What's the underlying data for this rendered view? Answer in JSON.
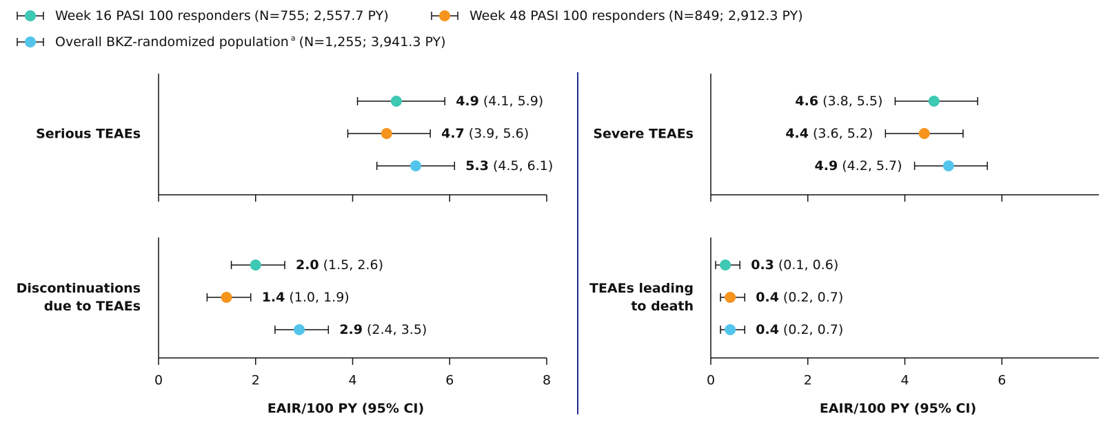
{
  "legend": [
    {
      "name": "Week 16 PASI 100 responders",
      "detail": "(N=755; 2,557.7 PY)",
      "color": "#3ec9b4"
    },
    {
      "name": "Week 48 PASI 100 responders",
      "detail": "(N=849; 2,912.3 PY)",
      "color": "#f7941d"
    },
    {
      "name": "Overall BKZ-randomized population",
      "footnote": "a",
      "detail": "(N=1,255; 3,941.3 PY)",
      "color": "#53c5ec"
    }
  ],
  "chart_data": [
    {
      "type": "forest",
      "label_lines": [
        "Serious TEAEs"
      ],
      "values": [
        4.9,
        4.7,
        5.3
      ],
      "lower": [
        4.1,
        3.9,
        4.5
      ],
      "upper": [
        5.9,
        5.6,
        6.1
      ],
      "ci_labels": [
        "(4.1, 5.9)",
        "(3.9, 5.6)",
        "(4.5, 6.1)"
      ],
      "xlim": [
        0,
        8
      ],
      "xticks": [
        0,
        2,
        4,
        6,
        8
      ]
    },
    {
      "type": "forest",
      "label_lines": [
        "Severe TEAEs"
      ],
      "values": [
        4.6,
        4.4,
        4.9
      ],
      "lower": [
        3.8,
        3.6,
        4.2
      ],
      "upper": [
        5.5,
        5.2,
        5.7
      ],
      "ci_labels": [
        "(3.8, 5.5)",
        "(3.6, 5.2)",
        "(4.2, 5.7)"
      ],
      "xlim": [
        0,
        8
      ],
      "xticks": [
        0,
        2,
        4,
        6
      ]
    },
    {
      "type": "forest",
      "label_lines": [
        "Discontinuations",
        "due to TEAEs"
      ],
      "values": [
        2.0,
        1.4,
        2.9
      ],
      "value_labels": [
        "2.0",
        "1.4",
        "2.9"
      ],
      "lower": [
        1.5,
        1.0,
        2.4
      ],
      "upper": [
        2.6,
        1.9,
        3.5
      ],
      "ci_labels": [
        "(1.5, 2.6)",
        "(1.0, 1.9)",
        "(2.4, 3.5)"
      ],
      "xlim": [
        0,
        8
      ],
      "xticks": [
        0,
        2,
        4,
        6,
        8
      ],
      "x_label": "EAIR/100 PY (95% CI)"
    },
    {
      "type": "forest",
      "label_lines": [
        "TEAEs leading",
        "to death"
      ],
      "values": [
        0.3,
        0.4,
        0.4
      ],
      "lower": [
        0.1,
        0.2,
        0.2
      ],
      "upper": [
        0.6,
        0.7,
        0.7
      ],
      "ci_labels": [
        "(0.1, 0.6)",
        "(0.2, 0.7)",
        "(0.2, 0.7)"
      ],
      "xlim": [
        0,
        8
      ],
      "xticks": [
        0,
        2,
        4,
        6
      ],
      "x_label": "EAIR/100 PY (95% CI)"
    }
  ]
}
